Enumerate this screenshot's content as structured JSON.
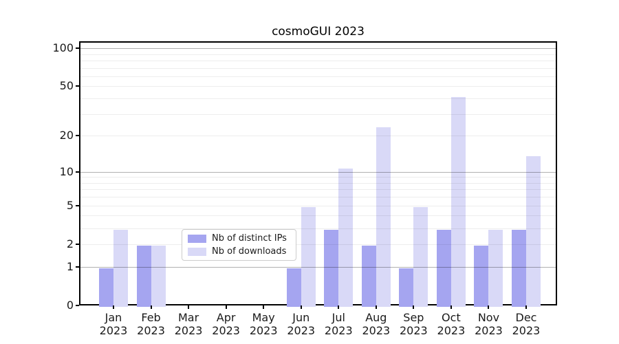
{
  "title": "cosmoGUI 2023",
  "chart_data": {
    "type": "bar",
    "title": "cosmoGUI 2023",
    "categories": [
      "Jan",
      "Feb",
      "Mar",
      "Apr",
      "May",
      "Jun",
      "Jul",
      "Aug",
      "Sep",
      "Oct",
      "Nov",
      "Dec"
    ],
    "year": "2023",
    "series": [
      {
        "name": "Nb of distinct IPs",
        "color": "#a5a5f0",
        "values": [
          1,
          2,
          0,
          0,
          0,
          1,
          3,
          2,
          1,
          3,
          2,
          3
        ]
      },
      {
        "name": "Nb of downloads",
        "color": "#d9d9f7",
        "values": [
          3,
          2,
          0,
          0,
          0,
          5,
          11,
          24,
          5,
          42,
          3,
          14
        ]
      }
    ],
    "xlabel": "",
    "ylabel": "",
    "yscale": "log1p",
    "yticks": [
      0,
      1,
      2,
      5,
      10,
      20,
      50,
      100
    ],
    "ylim": [
      0,
      113
    ],
    "grid": {
      "major": [
        1,
        10,
        100
      ],
      "minor": [
        2,
        3,
        4,
        5,
        6,
        7,
        8,
        9,
        20,
        30,
        40,
        50,
        60,
        70,
        80,
        90
      ]
    },
    "legend_position": "lower-center",
    "colors": {
      "major_grid": "#b0b0b0",
      "minor_grid": "#ededed",
      "spine": "#000000",
      "tick_label": "#1a1a1a"
    }
  }
}
